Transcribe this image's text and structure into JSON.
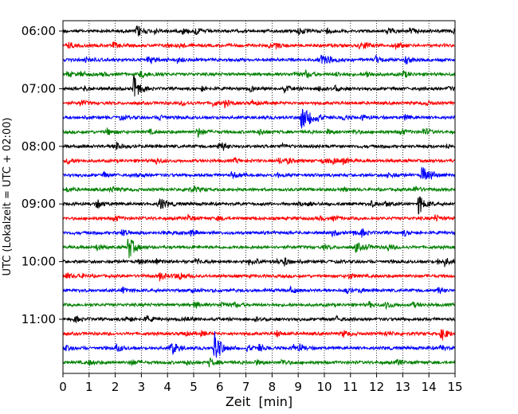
{
  "chart_data": {
    "type": "line",
    "plot_kind": "helicorder",
    "xlabel": "Zeit  [min]",
    "ylabel": "UTC (Lokalzeit = UTC + 02:00)",
    "xlim": [
      0,
      15
    ],
    "x_ticks": [
      0,
      1,
      2,
      3,
      4,
      5,
      6,
      7,
      8,
      9,
      10,
      11,
      12,
      13,
      14,
      15
    ],
    "x_grid": "dotted vertical lines at each minute",
    "y_tick_labels": [
      "06:00",
      "07:00",
      "08:00",
      "09:00",
      "10:00",
      "11:00"
    ],
    "trace_interval_minutes": 15,
    "start_time_utc": "06:00",
    "traces_per_hour": 4,
    "trace_color_cycle": [
      "#000000",
      "#ff0000",
      "#0000ff",
      "#008000"
    ],
    "events": [
      {
        "trace_start": "06:00",
        "minute": 2.8,
        "relative_amplitude": 0.6
      },
      {
        "trace_start": "06:00",
        "minute": 9.0,
        "relative_amplitude": 0.6
      },
      {
        "trace_start": "06:15",
        "minute": 12.7,
        "relative_amplitude": 0.5
      },
      {
        "trace_start": "06:30",
        "minute": 13.1,
        "relative_amplitude": 0.6
      },
      {
        "trace_start": "06:45",
        "minute": 13.0,
        "relative_amplitude": 0.5
      },
      {
        "trace_start": "07:00",
        "minute": 2.7,
        "relative_amplitude": 2.2
      },
      {
        "trace_start": "07:30",
        "minute": 9.1,
        "relative_amplitude": 1.9
      },
      {
        "trace_start": "09:00",
        "minute": 1.3,
        "relative_amplitude": 0.6
      },
      {
        "trace_start": "09:00",
        "minute": 3.7,
        "relative_amplitude": 0.7
      },
      {
        "trace_start": "09:00",
        "minute": 13.6,
        "relative_amplitude": 1.5
      },
      {
        "trace_start": "09:45",
        "minute": 2.5,
        "relative_amplitude": 1.6
      },
      {
        "trace_start": "09:45",
        "minute": 11.2,
        "relative_amplitude": 0.7
      },
      {
        "trace_start": "10:15",
        "minute": 3.7,
        "relative_amplitude": 0.6
      },
      {
        "trace_start": "11:30",
        "minute": 5.8,
        "relative_amplitude": 2.8
      },
      {
        "trace_start": "11:30",
        "minute": 4.2,
        "relative_amplitude": 0.7
      },
      {
        "trace_start": "11:45",
        "minute": 5.6,
        "relative_amplitude": 0.6
      }
    ]
  }
}
